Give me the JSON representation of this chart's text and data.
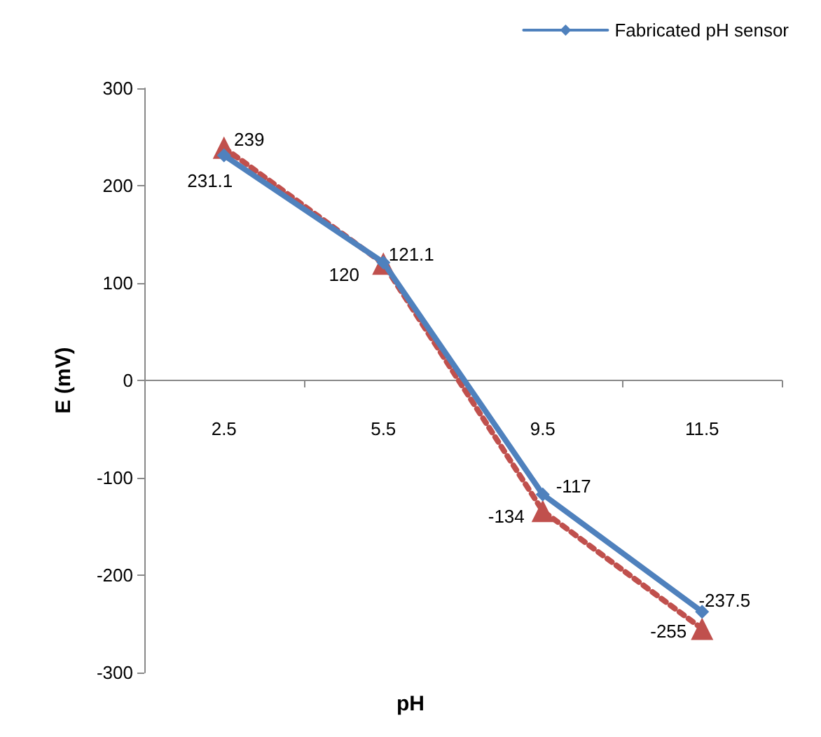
{
  "chart_data": {
    "type": "line",
    "xlabel": "pH",
    "ylabel": "E (mV)",
    "categories": [
      "2.5",
      "5.5",
      "9.5",
      "11.5"
    ],
    "series": [
      {
        "name": "Fabricated pH sensor",
        "color": "#4f81bd",
        "values": [
          231.1,
          121.1,
          -117,
          -237.5
        ],
        "marker": "diamond",
        "line_style": "solid"
      },
      {
        "color": "#c0504d",
        "values": [
          239,
          120,
          -134,
          -255
        ],
        "marker": "triangle",
        "line_style": "dotted"
      }
    ],
    "ylim": [
      -300,
      300
    ],
    "yticks": [
      -300,
      -200,
      -100,
      0,
      100,
      200,
      300
    ],
    "grid": false,
    "legend": "top right",
    "data_labels": true
  }
}
